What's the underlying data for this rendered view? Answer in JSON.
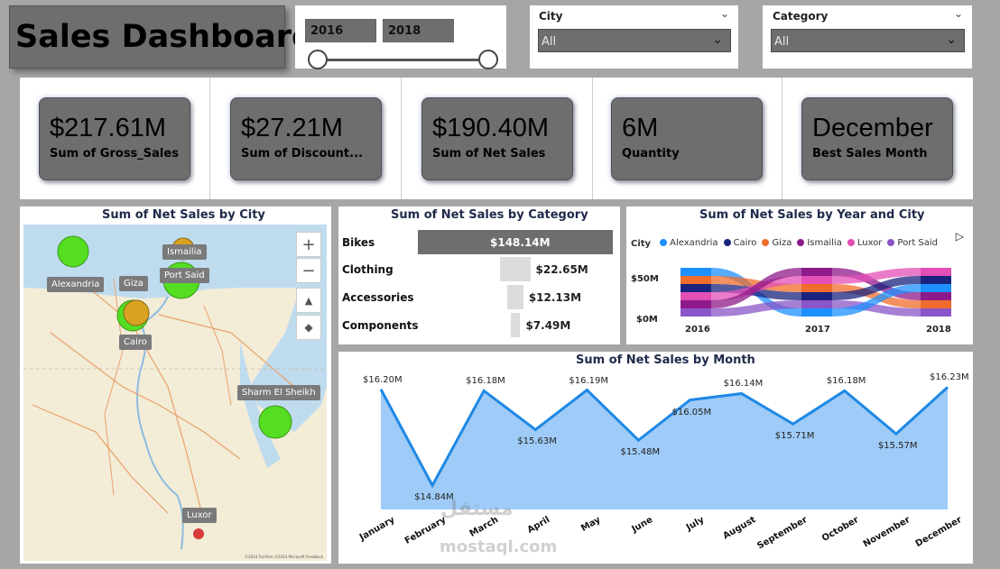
{
  "title": "Sales Dashboard",
  "year_slicer": {
    "from": "2016",
    "to": "2018"
  },
  "city_slicer": {
    "label": "City",
    "value": "All"
  },
  "category_slicer": {
    "label": "Category",
    "value": "All"
  },
  "kpis": [
    {
      "value": "$217.61M",
      "label": "Sum of Gross_Sales"
    },
    {
      "value": "$27.21M",
      "label": "Sum of Discount..."
    },
    {
      "value": "$190.40M",
      "label": "Sum of Net Sales"
    },
    {
      "value": "6M",
      "label": "Quantity"
    },
    {
      "value": "December",
      "label": "Best Sales Month"
    }
  ],
  "map": {
    "title": "Sum of Net Sales by City",
    "cities": [
      "Alexandria",
      "Giza",
      "Ismailia",
      "Port Said",
      "Cairo",
      "Sharm El Sheikh",
      "Luxor"
    ],
    "footer": "©2024 TomTom ©2024 Microsoft Feedback",
    "colors": {
      "green": "#55dd22",
      "orange": "#d9a322",
      "red": "#d63a3a"
    }
  },
  "category_chart": {
    "title": "Sum of Net Sales by Category",
    "chart_data": {
      "type": "bar",
      "categories": [
        "Bikes",
        "Clothing",
        "Accessories",
        "Components"
      ],
      "values": [
        148.14,
        22.65,
        12.13,
        7.49
      ],
      "value_labels": [
        "$148.14M",
        "$22.65M",
        "$12.13M",
        "$7.49M"
      ],
      "unit": "M"
    }
  },
  "ribbon_chart": {
    "title": "Sum of Net Sales by Year and City",
    "legend_title": "City",
    "legend": [
      {
        "name": "Alexandria",
        "color": "#1e90ff"
      },
      {
        "name": "Cairo",
        "color": "#1a237e"
      },
      {
        "name": "Giza",
        "color": "#ef6c2c"
      },
      {
        "name": "Ismailia",
        "color": "#8e1a8a"
      },
      {
        "name": "Luxor",
        "color": "#e34fb5"
      },
      {
        "name": "Port Said",
        "color": "#8a55c8"
      }
    ],
    "yticks": [
      "$50M",
      "$0M"
    ],
    "xticks": [
      "2016",
      "2017",
      "2018"
    ]
  },
  "month_chart": {
    "title": "Sum of Net Sales by Month",
    "chart_data": {
      "type": "area",
      "categories": [
        "January",
        "February",
        "March",
        "April",
        "May",
        "June",
        "July",
        "August",
        "September",
        "October",
        "November",
        "December"
      ],
      "values": [
        16.2,
        14.84,
        16.18,
        15.63,
        16.19,
        15.48,
        16.05,
        16.14,
        15.71,
        16.18,
        15.57,
        16.23
      ],
      "value_labels": [
        "$16.20M",
        "$14.84M",
        "$16.18M",
        "$15.63M",
        "$16.19M",
        "$15.48M",
        "$16.05M",
        "$16.14M",
        "$15.71M",
        "$16.18M",
        "$15.57M",
        "$16.23M"
      ],
      "ylim": [
        14.5,
        16.35
      ],
      "line_color": "#1e88e5",
      "fill_color": "#9ecbf7"
    }
  },
  "watermark": {
    "arabic": "مستقل",
    "latin": "mostaql.com"
  }
}
